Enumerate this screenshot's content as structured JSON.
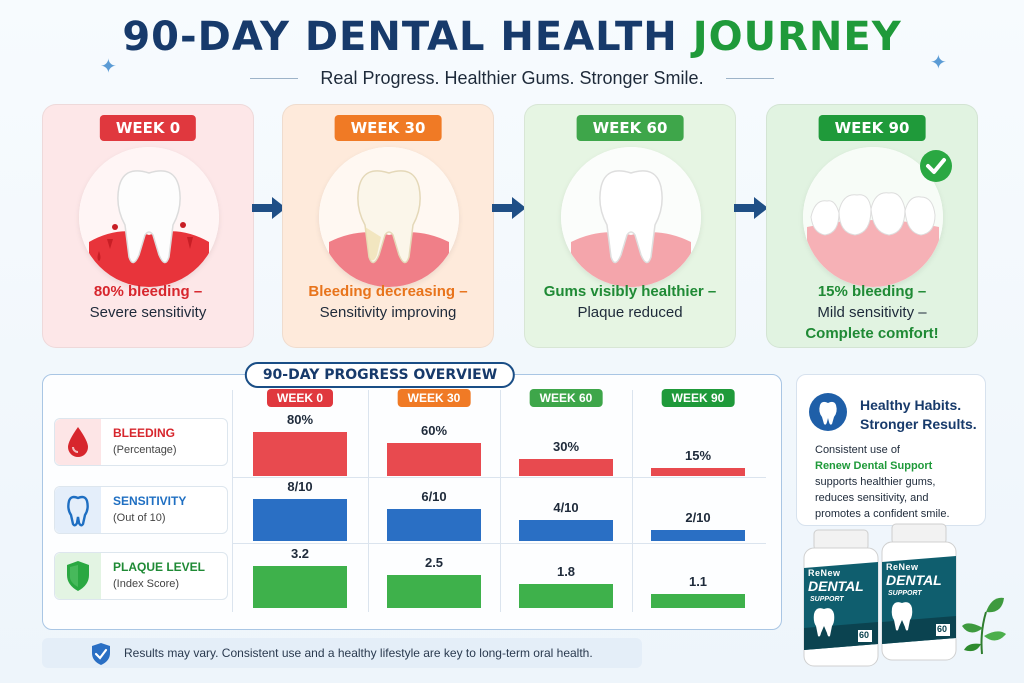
{
  "header": {
    "title_main": "90-DAY DENTAL HEALTH",
    "title_accent": "JOURNEY",
    "subtitle": "Real Progress. Healthier Gums. Stronger Smile."
  },
  "stages": [
    {
      "badge": "WEEK 0",
      "line1": "80% bleeding –",
      "line2": "Severe sensitivity",
      "line3": "",
      "color": "#e0383e",
      "bg": "#fde7e8",
      "text_color": "#d7262d"
    },
    {
      "badge": "WEEK 30",
      "line1": "Bleeding decreasing –",
      "line2": "Sensitivity improving",
      "line3": "",
      "color": "#f07a25",
      "bg": "#feeadb",
      "text_color": "#e8741c"
    },
    {
      "badge": "WEEK 60",
      "line1": "Gums visibly healthier –",
      "line2": "Plaque reduced",
      "line3": "",
      "color": "#3ea64a",
      "bg": "#e6f5e3",
      "text_color": "#1f8a35"
    },
    {
      "badge": "WEEK 90",
      "line1": "15% bleeding –",
      "line2": "Mild sensitivity –",
      "line3": "Complete comfort!",
      "color": "#1f9a3a",
      "bg": "#e1f3e1",
      "text_color": "#1f8a35"
    }
  ],
  "overview": {
    "title": "90-DAY PROGRESS OVERVIEW",
    "columns": [
      {
        "label": "WEEK 0",
        "color": "#e0383e"
      },
      {
        "label": "WEEK 30",
        "color": "#f07a25"
      },
      {
        "label": "WEEK 60",
        "color": "#3ea64a"
      },
      {
        "label": "WEEK 90",
        "color": "#1f9a3a"
      }
    ],
    "metrics": [
      {
        "name": "BLEEDING",
        "unit": "(Percentage)",
        "icon": "blood-drop-icon",
        "color": "#d7262d",
        "bar_color": "#e84a4f",
        "labels": [
          "80%",
          "60%",
          "30%",
          "15%"
        ],
        "values": [
          80,
          60,
          30,
          15
        ],
        "max": 80
      },
      {
        "name": "SENSITIVITY",
        "unit": "(Out of 10)",
        "icon": "tooth-icon",
        "color": "#1f6fc2",
        "bar_color": "#2a6fc4",
        "labels": [
          "8/10",
          "6/10",
          "4/10",
          "2/10"
        ],
        "values": [
          8,
          6,
          4,
          2
        ],
        "max": 8
      },
      {
        "name": "PLAQUE LEVEL",
        "unit": "(Index Score)",
        "icon": "shield-icon",
        "color": "#1f8a35",
        "bar_color": "#3eb14b",
        "labels": [
          "3.2",
          "2.5",
          "1.8",
          "1.1"
        ],
        "values": [
          3.2,
          2.5,
          1.8,
          1.1
        ],
        "max": 3.2
      }
    ]
  },
  "disclaimer": "Results may vary. Consistent use and a healthy lifestyle are key to long-term oral health.",
  "promo": {
    "heading_1": "Healthy Habits.",
    "heading_2": "Stronger Results.",
    "text_1": "Consistent use of",
    "brand": "Renew Dental Support",
    "text_2": "supports healthier gums, reduces sensitivity, and promotes a confident smile.",
    "bottle_brand": "ReNew",
    "bottle_name": "DENTAL",
    "bottle_sub": "SUPPORT",
    "bottle_count": "60"
  }
}
